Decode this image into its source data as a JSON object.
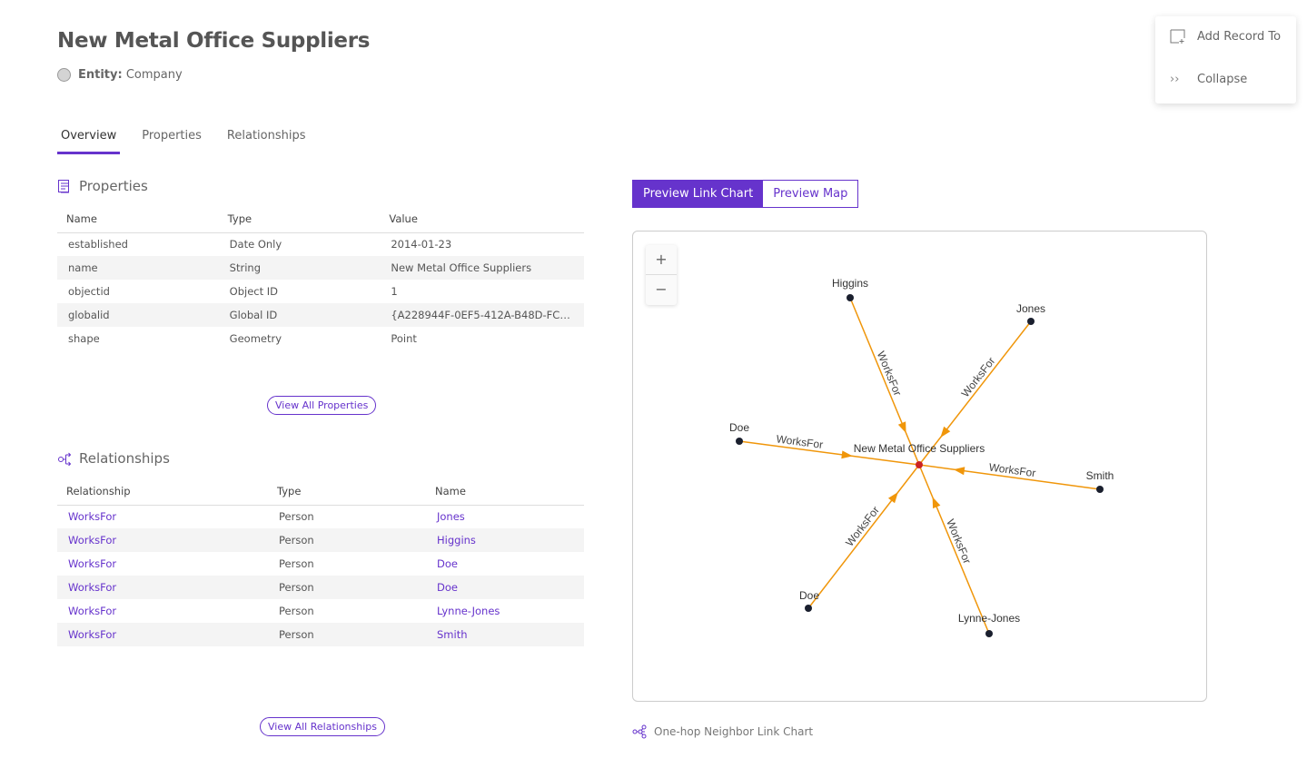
{
  "header": {
    "title": "New Metal Office Suppliers",
    "entity_label": "Entity:",
    "entity_value": "Company"
  },
  "tabs": [
    {
      "label": "Overview",
      "active": true
    },
    {
      "label": "Properties"
    },
    {
      "label": "Relationships"
    }
  ],
  "menu": {
    "add_record": "Add Record To",
    "collapse": "Collapse"
  },
  "properties": {
    "heading": "Properties",
    "columns": [
      "Name",
      "Type",
      "Value"
    ],
    "rows": [
      [
        "established",
        "Date Only",
        "2014-01-23"
      ],
      [
        "name",
        "String",
        "New Metal Office Suppliers"
      ],
      [
        "objectid",
        "Object ID",
        "1"
      ],
      [
        "globalid",
        "Global ID",
        "{A228944F-0EF5-412A-B48D-FCB…"
      ],
      [
        "shape",
        "Geometry",
        "Point"
      ]
    ],
    "view_all": "View All Properties"
  },
  "relationships": {
    "heading": "Relationships",
    "columns": [
      "Relationship",
      "Type",
      "Name"
    ],
    "rows": [
      [
        "WorksFor",
        "Person",
        "Jones"
      ],
      [
        "WorksFor",
        "Person",
        "Higgins"
      ],
      [
        "WorksFor",
        "Person",
        "Doe"
      ],
      [
        "WorksFor",
        "Person",
        "Doe"
      ],
      [
        "WorksFor",
        "Person",
        "Lynne-Jones"
      ],
      [
        "WorksFor",
        "Person",
        "Smith"
      ]
    ],
    "view_all": "View All Relationships"
  },
  "preview": {
    "link_chart": "Preview Link Chart",
    "map": "Preview Map",
    "active": "link_chart"
  },
  "link_chart": {
    "zoom_in": "+",
    "zoom_out": "−",
    "center": "New Metal Office Suppliers",
    "nodes": [
      "Higgins",
      "Jones",
      "Doe",
      "Smith",
      "Doe",
      "Lynne-Jones"
    ],
    "edge_label": "WorksFor",
    "colors": {
      "edge": "#f0960a",
      "node": "#1a1f2e",
      "center": "#cc2222"
    }
  },
  "caption": "One-hop Neighbor Link Chart",
  "colors": {
    "accent": "#6633cc"
  }
}
